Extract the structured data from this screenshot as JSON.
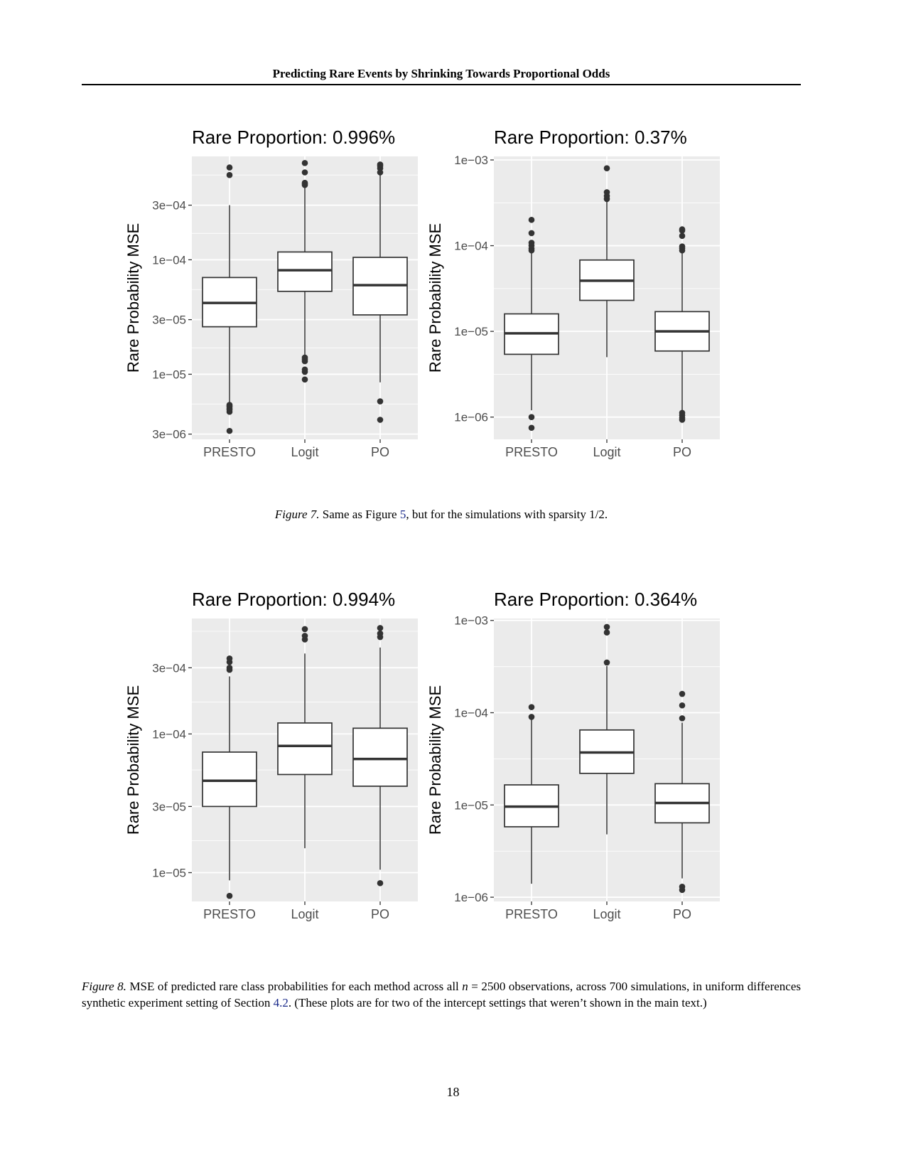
{
  "header": {
    "running_title": "Predicting Rare Events by Shrinking Towards Proportional Odds"
  },
  "figures": [
    {
      "label": "Figure 7.",
      "caption_parts": [
        "Same as Figure ",
        "5",
        ", but for the simulations with sparsity ",
        "1/2",
        "."
      ],
      "panels": [
        {
          "title": "Rare Proportion: 0.996%",
          "ylabel": "Rare Probability MSE",
          "yscale": "log",
          "ylim": [
            2.7e-06,
            0.0008
          ],
          "yticks": [
            {
              "v": 3e-06,
              "label": "3e−06"
            },
            {
              "v": 1e-05,
              "label": "1e−05"
            },
            {
              "v": 3e-05,
              "label": "3e−05"
            },
            {
              "v": 0.0001,
              "label": "1e−04"
            },
            {
              "v": 0.0003,
              "label": "3e−04"
            }
          ],
          "minor_ticks": [
            5.5e-06,
            1.7e-05,
            5.5e-05,
            0.00017,
            0.00055
          ],
          "categories": [
            "PRESTO",
            "Logit",
            "PO"
          ],
          "boxes": [
            {
              "q1": 2.6e-05,
              "median": 4.2e-05,
              "q3": 7e-05,
              "whisker_low": 5.6e-06,
              "whisker_high": 0.0003,
              "outliers": [
                3.2e-06,
                4.7e-06,
                4.9e-06,
                5e-06,
                5.2e-06,
                5.3e-06,
                5.4e-06,
                0.00055,
                0.00064
              ]
            },
            {
              "q1": 5.3e-05,
              "median": 8.1e-05,
              "q3": 0.000117,
              "whisker_low": 1.45e-05,
              "whisker_high": 0.00043,
              "outliers": [
                9e-06,
                1.05e-05,
                1.1e-05,
                1.3e-05,
                1.35e-05,
                1.4e-05,
                0.00045,
                0.00046,
                0.00047,
                0.00058,
                0.0007
              ]
            },
            {
              "q1": 3.3e-05,
              "median": 6e-05,
              "q3": 0.000105,
              "whisker_low": 8.5e-06,
              "whisker_high": 0.00055,
              "outliers": [
                4e-06,
                5.8e-06,
                0.00058,
                0.00063,
                0.00066,
                0.00068
              ]
            }
          ]
        },
        {
          "title": "Rare Proportion: 0.37%",
          "ylabel": "Rare Probability MSE",
          "yscale": "log",
          "ylim": [
            5.5e-07,
            0.0011
          ],
          "yticks": [
            {
              "v": 1e-06,
              "label": "1e−06"
            },
            {
              "v": 1e-05,
              "label": "1e−05"
            },
            {
              "v": 0.0001,
              "label": "1e−04"
            },
            {
              "v": 0.001,
              "label": "1e−03"
            }
          ],
          "minor_ticks": [
            3.16e-06,
            3.16e-05,
            0.000316
          ],
          "categories": [
            "PRESTO",
            "Logit",
            "PO"
          ],
          "boxes": [
            {
              "q1": 5.4e-06,
              "median": 9.5e-06,
              "q3": 1.6e-05,
              "whisker_low": 1.2e-06,
              "whisker_high": 8.5e-05,
              "outliers": [
                7.5e-07,
                1e-06,
                8.8e-05,
                9.2e-05,
                0.0001,
                0.000108,
                0.00014,
                0.0002
              ]
            },
            {
              "q1": 2.3e-05,
              "median": 3.9e-05,
              "q3": 6.8e-05,
              "whisker_low": 5e-06,
              "whisker_high": 0.00033,
              "outliers": [
                0.00035,
                0.00038,
                0.00042,
                0.0008
              ]
            },
            {
              "q1": 5.9e-06,
              "median": 1e-05,
              "q3": 1.7e-05,
              "whisker_low": 1.2e-06,
              "whisker_high": 8.5e-05,
              "outliers": [
                9.3e-07,
                9.8e-07,
                1.05e-06,
                1.12e-06,
                8.8e-05,
                9.3e-05,
                9.8e-05,
                0.00013,
                0.00015,
                0.000155
              ]
            }
          ]
        }
      ]
    },
    {
      "label": "Figure 8.",
      "caption_parts": [
        "MSE of predicted rare class probabilities for each method across all ",
        "n",
        " = 2500 observations, across 700 simulations, in uniform differences synthetic experiment setting of Section ",
        "4.2",
        ". (These plots are for two of the intercept settings that weren’t shown in the main text.)"
      ],
      "panels": [
        {
          "title": "Rare Proportion: 0.994%",
          "ylabel": "Rare Probability MSE",
          "yscale": "log",
          "ylim": [
            6.2e-06,
            0.00068
          ],
          "yticks": [
            {
              "v": 1e-05,
              "label": "1e−05"
            },
            {
              "v": 3e-05,
              "label": "3e−05"
            },
            {
              "v": 0.0001,
              "label": "1e−04"
            },
            {
              "v": 0.0003,
              "label": "3e−04"
            }
          ],
          "minor_ticks": [
            1.7e-05,
            5.5e-05,
            0.00017,
            0.00055
          ],
          "categories": [
            "PRESTO",
            "Logit",
            "PO"
          ],
          "boxes": [
            {
              "q1": 3e-05,
              "median": 4.6e-05,
              "q3": 7.4e-05,
              "whisker_low": 8.8e-06,
              "whisker_high": 0.00026,
              "outliers": [
                6.8e-06,
                0.00029,
                0.0003,
                0.00033,
                0.00035
              ]
            },
            {
              "q1": 5.1e-05,
              "median": 8.2e-05,
              "q3": 0.00012,
              "whisker_low": 1.5e-05,
              "whisker_high": 0.00038,
              "outliers": [
                0.00048,
                0.00051,
                0.00057
              ]
            },
            {
              "q1": 4.2e-05,
              "median": 6.6e-05,
              "q3": 0.00011,
              "whisker_low": 1.05e-05,
              "whisker_high": 0.00042,
              "outliers": [
                8.4e-06,
                0.0005,
                0.00053,
                0.00058
              ]
            }
          ]
        },
        {
          "title": "Rare Proportion: 0.364%",
          "ylabel": "Rare Probability MSE",
          "yscale": "log",
          "ylim": [
            9e-07,
            0.00105
          ],
          "yticks": [
            {
              "v": 1e-06,
              "label": "1e−06"
            },
            {
              "v": 1e-05,
              "label": "1e−05"
            },
            {
              "v": 0.0001,
              "label": "1e−04"
            },
            {
              "v": 0.001,
              "label": "1e−03"
            }
          ],
          "minor_ticks": [
            3.16e-06,
            3.16e-05,
            0.000316
          ],
          "categories": [
            "PRESTO",
            "Logit",
            "PO"
          ],
          "boxes": [
            {
              "q1": 5.8e-06,
              "median": 9.6e-06,
              "q3": 1.65e-05,
              "whisker_low": 1.4e-06,
              "whisker_high": 8.5e-05,
              "outliers": [
                9e-05,
                0.000115
              ]
            },
            {
              "q1": 2.2e-05,
              "median": 3.7e-05,
              "q3": 6.5e-05,
              "whisker_low": 4.8e-06,
              "whisker_high": 0.00032,
              "outliers": [
                0.00035,
                0.00074,
                0.00085
              ]
            },
            {
              "q1": 6.4e-06,
              "median": 1.05e-05,
              "q3": 1.7e-05,
              "whisker_low": 1.6e-06,
              "whisker_high": 7.8e-05,
              "outliers": [
                1.2e-06,
                1.3e-06,
                8.7e-05,
                0.00012,
                0.00016
              ]
            }
          ]
        }
      ]
    }
  ],
  "page_number": "18"
}
